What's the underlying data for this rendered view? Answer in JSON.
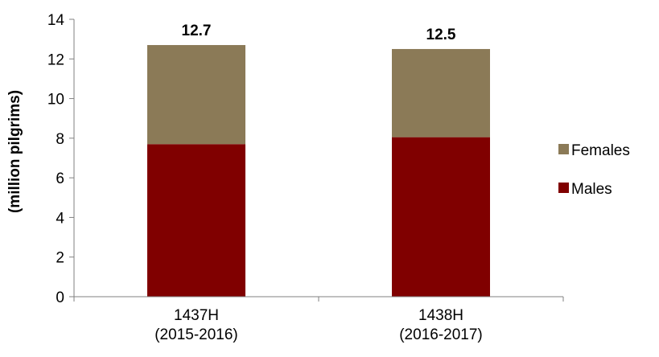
{
  "colors": {
    "females": "#8B7A57",
    "males": "#800000"
  },
  "chart_data": {
    "type": "bar",
    "stacked": true,
    "categories": [
      "1437H\n(2015-2016)",
      "1438H\n(2016-2017)"
    ],
    "series": [
      {
        "name": "Males",
        "values": [
          7.7,
          8.05
        ]
      },
      {
        "name": "Females",
        "values": [
          5.0,
          4.45
        ]
      }
    ],
    "totals": [
      "12.7",
      "12.5"
    ],
    "ylabel": "(million pilgrims)",
    "ylim": [
      0,
      14
    ],
    "yticks": [
      0,
      2,
      4,
      6,
      8,
      10,
      12,
      14
    ],
    "legend": [
      "Females",
      "Males"
    ],
    "legend_position": "right",
    "grid": false
  }
}
